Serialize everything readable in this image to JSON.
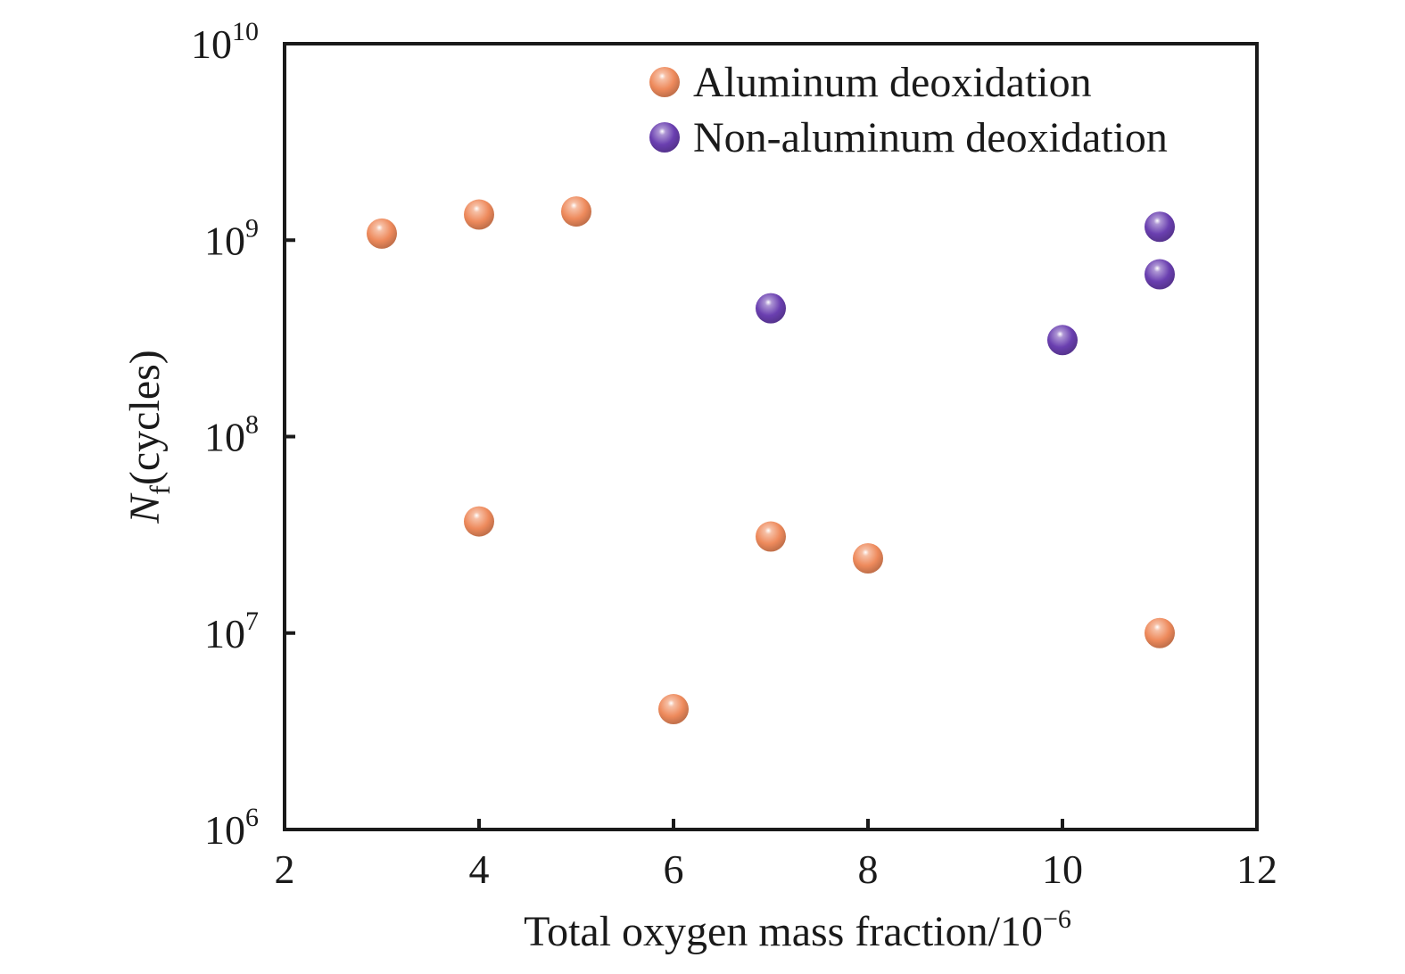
{
  "chart_data": {
    "type": "scatter",
    "xlabel": "Total oxygen mass fraction/10",
    "xlabel_exponent": "−6",
    "ylabel_symbol": "N",
    "ylabel_subscript": "f",
    "ylabel_unit": "(cycles)",
    "xlim": [
      2,
      12
    ],
    "ylim": [
      1000000,
      10000000000
    ],
    "yscale": "log",
    "xticks": [
      2,
      4,
      6,
      8,
      10,
      12
    ],
    "xtick_labels": [
      "2",
      "4",
      "6",
      "8",
      "10",
      "12"
    ],
    "yticks": [
      1000000,
      10000000,
      100000000,
      1000000000,
      10000000000
    ],
    "ytick_labels": [
      {
        "base": "10",
        "exp": "6"
      },
      {
        "base": "10",
        "exp": "7"
      },
      {
        "base": "10",
        "exp": "8"
      },
      {
        "base": "10",
        "exp": "9"
      },
      {
        "base": "10",
        "exp": "10"
      }
    ],
    "grid": false,
    "legend_position": "top-right",
    "series": [
      {
        "name": "Aluminum deoxidation",
        "color": "#ee8a5c",
        "points": [
          {
            "x": 3,
            "y": 1080000000
          },
          {
            "x": 4,
            "y": 1350000000
          },
          {
            "x": 5,
            "y": 1400000000
          },
          {
            "x": 4,
            "y": 37000000
          },
          {
            "x": 6,
            "y": 4100000
          },
          {
            "x": 7,
            "y": 31000000
          },
          {
            "x": 8,
            "y": 24000000
          },
          {
            "x": 11,
            "y": 10000000
          }
        ]
      },
      {
        "name": "Non-aluminum deoxidation",
        "color": "#6a3fb0",
        "points": [
          {
            "x": 7,
            "y": 450000000
          },
          {
            "x": 10,
            "y": 310000000
          },
          {
            "x": 11,
            "y": 1170000000
          },
          {
            "x": 11,
            "y": 670000000
          }
        ]
      }
    ]
  }
}
